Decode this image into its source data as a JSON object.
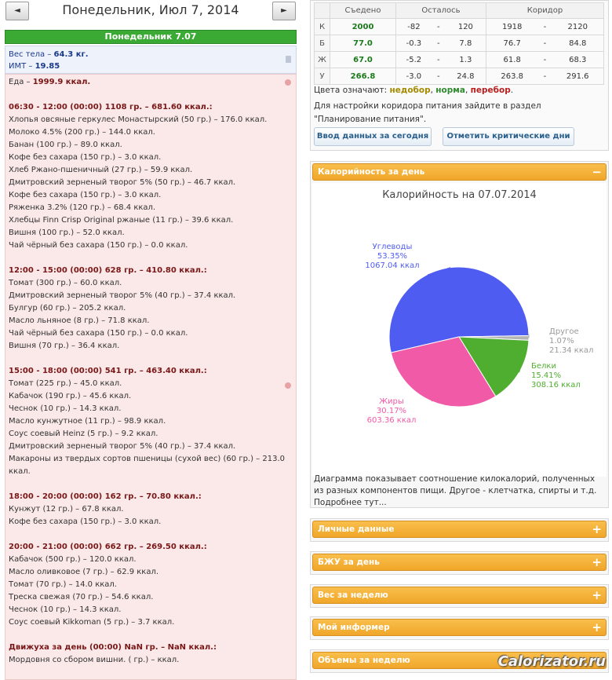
{
  "nav": {
    "prev": "◄",
    "next": "►",
    "title": "Понедельник, Июл 7, 2014",
    "day_bar": "Понедельник 7.07"
  },
  "body": {
    "weight_label": "Вес тела – ",
    "weight_value": "64.3 кг.",
    "bmi_label": "ИМТ – ",
    "bmi_value": "19.85"
  },
  "food": {
    "total_label": "Еда – ",
    "total_value": "1999.9 ккал.",
    "meals": [
      {
        "head": "06:30 - 12:00 (00:00) 1108 гр. – 681.60 ккал.:",
        "items": [
          "Хлопья овсяные геркулес Монастырский (50 гр.) – 176.0 ккал.",
          "Молоко 4.5% (200 гр.) – 144.0 ккал.",
          "Банан (100 гр.) – 89.0 ккал.",
          "Кофе без сахара (150 гр.) – 3.0 ккал.",
          "Хлеб Ржано-пшеничный (27 гр.) – 59.9 ккал.",
          "Дмитровский зерненый творог 5% (50 гр.) – 46.7 ккал.",
          "Кофе без сахара (150 гр.) – 3.0 ккал.",
          "Ряженка 3.2% (120 гр.) – 68.4 ккал.",
          "Хлебцы Finn Crisp Original ржаные (11 гр.) – 39.6 ккал.",
          "Вишня (100 гр.) – 52.0 ккал.",
          "Чай чёрный без сахара (150 гр.) – 0.0 ккал."
        ]
      },
      {
        "head": "12:00 - 15:00 (00:00) 628 гр. – 410.80 ккал.:",
        "items": [
          "Томат (300 гр.) – 60.0 ккал.",
          "Дмитровский зерненый творог 5% (40 гр.) – 37.4 ккал.",
          "Булгур (60 гр.) – 205.2 ккал.",
          "Масло льняное (8 гр.) – 71.8 ккал.",
          "Чай чёрный без сахара (150 гр.) – 0.0 ккал.",
          "Вишня (70 гр.) – 36.4 ккал."
        ]
      },
      {
        "head": "15:00 - 18:00 (00:00) 541 гр. – 463.40 ккал.:",
        "items": [
          "Томат (225 гр.) – 45.0 ккал.",
          "Кабачок (190 гр.) – 45.6 ккал.",
          "Чеснок (10 гр.) – 14.3 ккал.",
          "Масло кунжутное (11 гр.) – 98.9 ккал.",
          "Соус соевый Heinz (5 гр.) – 9.2 ккал.",
          "Дмитровский зерненый творог 5% (40 гр.) – 37.4 ккал.",
          "Макароны из твердых сортов пшеницы (сухой вес) (60 гр.) – 213.0 ккал."
        ]
      },
      {
        "head": "18:00 - 20:00 (00:00) 162 гр. – 70.80 ккал.:",
        "items": [
          "Кунжут (12 гр.) – 67.8 ккал.",
          "Кофе без сахара (150 гр.) – 3.0 ккал."
        ]
      },
      {
        "head": "20:00 - 21:00 (00:00) 662 гр. – 269.50 ккал.:",
        "items": [
          "Кабачок (500 гр.) – 120.0 ккал.",
          "Масло оливковое (7 гр.) – 62.9 ккал.",
          "Томат (70 гр.) – 14.0 ккал.",
          "Треска свежая (70 гр.) – 54.6 ккал.",
          "Чеснок (10 гр.) – 14.3 ккал.",
          "Соус соевый Kikkoman (5 гр.) – 3.7 ккал."
        ]
      },
      {
        "head": "Движуха за день (00:00) NaN гр. – NaN ккал.:",
        "items": [
          "Мордовня со сбором вишни. ( гр.) – ккал."
        ]
      }
    ]
  },
  "bju_table": {
    "headers": [
      "",
      "Съедено",
      "Осталось",
      "Коридор"
    ],
    "rows": [
      {
        "label": "К",
        "eaten": "2000",
        "left_a": "-82",
        "left_sep": "-",
        "left_b": "120",
        "cor_a": "1918",
        "cor_sep": "-",
        "cor_b": "2120"
      },
      {
        "label": "Б",
        "eaten": "77.0",
        "left_a": "-0.3",
        "left_sep": "-",
        "left_b": "7.8",
        "cor_a": "76.7",
        "cor_sep": "-",
        "cor_b": "84.8"
      },
      {
        "label": "Ж",
        "eaten": "67.0",
        "left_a": "-5.2",
        "left_sep": "-",
        "left_b": "1.3",
        "cor_a": "61.8",
        "cor_sep": "-",
        "cor_b": "68.3"
      },
      {
        "label": "У",
        "eaten": "266.8",
        "left_a": "-3.0",
        "left_sep": "-",
        "left_b": "24.8",
        "cor_a": "263.8",
        "cor_sep": "-",
        "cor_b": "291.6"
      }
    ]
  },
  "legend": {
    "prefix": "Цвета означают: ",
    "under": "недобор",
    "sep1": ", ",
    "norm": "норма",
    "sep2": ", ",
    "over": "перебор",
    "end": "."
  },
  "hint": {
    "line1": "Для настройки коридора питания зайдите в раздел",
    "line2": "\"Планирование питания\"."
  },
  "buttons": {
    "today": "Ввод данных за сегодня",
    "critical": "Отметить критические дни"
  },
  "accordion": {
    "calories": "Калорийность за день",
    "calories_sign": "−",
    "personal": "Личные данные",
    "bju": "БЖУ за день",
    "weight": "Вес за неделю",
    "informer": "Мой информер",
    "volumes": "Объемы за неделю",
    "plus": "+"
  },
  "chart_data": {
    "type": "pie",
    "title": "Калорийность на 07.07.2014",
    "unit": "ккал",
    "slices": [
      {
        "name": "Углеводы",
        "percent": 53.35,
        "value": 1067.04,
        "percent_label": "53.35%",
        "value_label": "1067.04 ккал",
        "color": "#4f5cf2"
      },
      {
        "name": "Другое",
        "percent": 1.07,
        "value": 21.34,
        "percent_label": "1.07%",
        "value_label": "21.34 ккал",
        "color": "#b5b5b5"
      },
      {
        "name": "Белки",
        "percent": 15.41,
        "value": 308.16,
        "percent_label": "15.41%",
        "value_label": "308.16 ккал",
        "color": "#4fae2f"
      },
      {
        "name": "Жиры",
        "percent": 30.17,
        "value": 603.36,
        "percent_label": "30.17%",
        "value_label": "603.36 ккал",
        "color": "#f05aa6"
      }
    ],
    "note": "Диаграмма показывает соотношение килокалорий, полученных из разных компонентов пищи. Другое - клетчатка, спирты и т.д. Подробнее тут..."
  },
  "watermark": "Calorizator.ru"
}
